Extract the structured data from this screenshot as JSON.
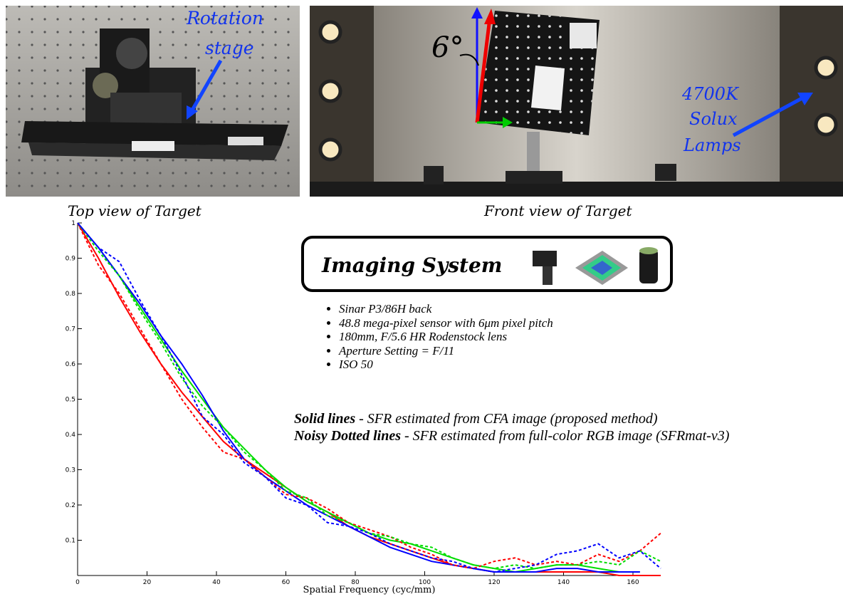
{
  "photos": {
    "top_caption": "Top view of Target",
    "front_caption": "Front view of Target",
    "rotation_label": [
      "Rotation",
      "stage"
    ],
    "angle_label": "6°",
    "lamp_label": [
      "4700K",
      "Solux",
      "Lamps"
    ]
  },
  "imaging_system": {
    "title": "Imaging System",
    "bullets": [
      "Sinar P3/86H back",
      "48.8 mega-pixel sensor with 6μm pixel pitch",
      "180mm, F/5.6 HR Rodenstock lens",
      "Aperture Setting = F/11",
      "ISO 50"
    ],
    "notes": [
      {
        "term": "Solid lines",
        "text": "- SFR estimated from CFA image (proposed method)"
      },
      {
        "term": "Noisy Dotted lines",
        "text": "- SFR estimated from full-color RGB image (SFRmat-v3)"
      }
    ]
  },
  "chart_data": {
    "type": "line",
    "x_label": "Spatial Frequency (cyc/mm)",
    "x": [
      0,
      6,
      12,
      18,
      24,
      30,
      36,
      42,
      48,
      54,
      60,
      66,
      72,
      78,
      84,
      90,
      96,
      102,
      108,
      114,
      120,
      126,
      132,
      138,
      144,
      150,
      156,
      162,
      168
    ],
    "xlim": [
      0,
      168
    ],
    "ylim": [
      0,
      1
    ],
    "xticks": [
      0,
      20,
      40,
      60,
      80,
      100,
      120,
      140,
      160
    ],
    "yticks": [
      0.1,
      0.2,
      0.3,
      0.4,
      0.5,
      0.6,
      0.7,
      0.8,
      0.9,
      1
    ],
    "series": [
      {
        "color": "#ff0000",
        "dashed": false,
        "values": [
          1,
          0.9,
          0.79,
          0.69,
          0.6,
          0.52,
          0.45,
          0.38,
          0.33,
          0.29,
          0.25,
          0.21,
          0.18,
          0.14,
          0.11,
          0.09,
          0.07,
          0.05,
          0.03,
          0.02,
          0.01,
          0.01,
          0.01,
          0.01,
          0.01,
          0.01,
          0,
          0,
          0
        ]
      },
      {
        "color": "#00dd00",
        "dashed": false,
        "values": [
          1,
          0.93,
          0.85,
          0.76,
          0.67,
          0.58,
          0.5,
          0.42,
          0.36,
          0.3,
          0.25,
          0.21,
          0.18,
          0.15,
          0.12,
          0.1,
          0.09,
          0.07,
          0.05,
          0.03,
          0.02,
          0.01,
          0.02,
          0.03,
          0.03,
          0.02,
          0.01,
          0.01,
          null
        ]
      },
      {
        "color": "#0000ff",
        "dashed": false,
        "values": [
          1,
          0.93,
          0.85,
          0.77,
          0.68,
          0.6,
          0.51,
          0.41,
          0.33,
          0.28,
          0.24,
          0.2,
          0.17,
          0.14,
          0.11,
          0.08,
          0.06,
          0.04,
          0.03,
          0.02,
          0.01,
          0.01,
          0.01,
          0.02,
          0.02,
          0.01,
          0.01,
          0.01,
          null
        ]
      },
      {
        "color": "#ff0000",
        "dashed": true,
        "values": [
          1,
          0.88,
          0.8,
          0.7,
          0.6,
          0.5,
          0.42,
          0.35,
          0.33,
          0.28,
          0.23,
          0.22,
          0.19,
          0.15,
          0.13,
          0.11,
          0.08,
          0.06,
          0.03,
          0.02,
          0.04,
          0.05,
          0.03,
          0.04,
          0.03,
          0.06,
          0.04,
          0.07,
          0.12
        ]
      },
      {
        "color": "#00dd00",
        "dashed": true,
        "values": [
          1,
          0.92,
          0.85,
          0.75,
          0.66,
          0.56,
          0.48,
          0.42,
          0.35,
          0.3,
          0.24,
          0.22,
          0.17,
          0.15,
          0.12,
          0.11,
          0.09,
          0.08,
          0.05,
          0.03,
          0.02,
          0.03,
          0.02,
          0.03,
          0.03,
          0.04,
          0.03,
          0.07,
          0.04
        ]
      },
      {
        "color": "#0000ff",
        "dashed": true,
        "values": [
          1,
          0.93,
          0.89,
          0.78,
          0.68,
          0.57,
          0.45,
          0.4,
          0.32,
          0.28,
          0.22,
          0.2,
          0.15,
          0.14,
          0.12,
          0.09,
          0.07,
          0.05,
          0.04,
          0.02,
          0.01,
          0.02,
          0.03,
          0.06,
          0.07,
          0.09,
          0.05,
          0.07,
          0.02
        ]
      }
    ]
  }
}
